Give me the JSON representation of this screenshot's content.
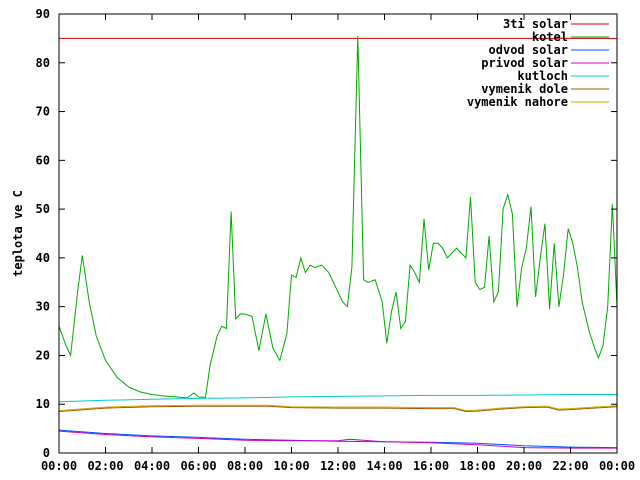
{
  "chart_data": {
    "type": "line",
    "title": "",
    "xlabel": "",
    "ylabel": "teplota ve C",
    "x_ticks": [
      "00:00",
      "02:00",
      "04:00",
      "06:00",
      "08:00",
      "10:00",
      "12:00",
      "14:00",
      "16:00",
      "18:00",
      "20:00",
      "22:00",
      "00:00"
    ],
    "xlim": [
      0,
      24
    ],
    "ylim": [
      0,
      90
    ],
    "y_ticks": [
      0,
      10,
      20,
      30,
      40,
      50,
      60,
      70,
      80,
      90
    ],
    "grid": false,
    "legend_position": "top-right",
    "series": [
      {
        "name": "3ti solar",
        "color": "#cc0000",
        "points": [
          [
            0,
            85
          ],
          [
            24,
            85
          ]
        ]
      },
      {
        "name": "kotel",
        "color": "#00aa00",
        "points": [
          [
            0,
            26
          ],
          [
            0.3,
            22
          ],
          [
            0.5,
            20
          ],
          [
            0.8,
            33
          ],
          [
            1,
            40.5
          ],
          [
            1.3,
            31
          ],
          [
            1.6,
            24
          ],
          [
            2,
            19
          ],
          [
            2.5,
            15.5
          ],
          [
            3,
            13.5
          ],
          [
            3.5,
            12.5
          ],
          [
            4,
            12
          ],
          [
            4.5,
            11.7
          ],
          [
            5,
            11.5
          ],
          [
            5.5,
            11.3
          ],
          [
            5.8,
            12.3
          ],
          [
            6,
            11.5
          ],
          [
            6.3,
            11.4
          ],
          [
            6.5,
            18
          ],
          [
            6.8,
            24
          ],
          [
            7,
            26
          ],
          [
            7.2,
            25.5
          ],
          [
            7.4,
            49.5
          ],
          [
            7.6,
            27.5
          ],
          [
            7.8,
            28.5
          ],
          [
            8,
            28.5
          ],
          [
            8.3,
            28
          ],
          [
            8.6,
            21
          ],
          [
            8.9,
            28.5
          ],
          [
            9.2,
            21.5
          ],
          [
            9.5,
            19
          ],
          [
            9.8,
            24.5
          ],
          [
            10,
            36.5
          ],
          [
            10.2,
            36
          ],
          [
            10.4,
            40
          ],
          [
            10.6,
            37
          ],
          [
            10.8,
            38.5
          ],
          [
            11,
            38
          ],
          [
            11.3,
            38.5
          ],
          [
            11.6,
            37
          ],
          [
            11.9,
            34
          ],
          [
            12.2,
            31
          ],
          [
            12.4,
            30
          ],
          [
            12.6,
            38
          ],
          [
            12.85,
            85.5
          ],
          [
            13.1,
            35.5
          ],
          [
            13.3,
            35
          ],
          [
            13.6,
            35.5
          ],
          [
            13.9,
            31
          ],
          [
            14.1,
            22.5
          ],
          [
            14.3,
            29
          ],
          [
            14.5,
            33
          ],
          [
            14.7,
            25.5
          ],
          [
            14.9,
            27
          ],
          [
            15.1,
            38.5
          ],
          [
            15.3,
            37
          ],
          [
            15.5,
            35
          ],
          [
            15.7,
            48
          ],
          [
            15.9,
            37.5
          ],
          [
            16.1,
            43
          ],
          [
            16.3,
            43
          ],
          [
            16.5,
            42
          ],
          [
            16.7,
            40
          ],
          [
            16.9,
            41
          ],
          [
            17.1,
            42
          ],
          [
            17.3,
            41
          ],
          [
            17.5,
            40
          ],
          [
            17.7,
            52.5
          ],
          [
            17.9,
            35
          ],
          [
            18.1,
            33.5
          ],
          [
            18.3,
            34
          ],
          [
            18.5,
            44.5
          ],
          [
            18.7,
            31
          ],
          [
            18.9,
            33
          ],
          [
            19.1,
            50
          ],
          [
            19.3,
            53
          ],
          [
            19.5,
            49
          ],
          [
            19.7,
            30
          ],
          [
            19.9,
            38
          ],
          [
            20.1,
            42
          ],
          [
            20.3,
            50.5
          ],
          [
            20.5,
            32
          ],
          [
            20.7,
            40
          ],
          [
            20.9,
            47
          ],
          [
            21.1,
            29.5
          ],
          [
            21.3,
            43
          ],
          [
            21.5,
            30
          ],
          [
            21.7,
            36.5
          ],
          [
            21.9,
            46
          ],
          [
            22.1,
            43
          ],
          [
            22.3,
            38
          ],
          [
            22.5,
            31
          ],
          [
            22.8,
            25
          ],
          [
            23,
            22
          ],
          [
            23.2,
            19.5
          ],
          [
            23.4,
            22
          ],
          [
            23.6,
            30
          ],
          [
            23.8,
            51
          ],
          [
            24,
            30
          ]
        ]
      },
      {
        "name": "odvod solar",
        "color": "#0055ff",
        "points": [
          [
            0,
            4.7
          ],
          [
            2,
            4
          ],
          [
            4,
            3.5
          ],
          [
            6,
            3.2
          ],
          [
            8,
            2.8
          ],
          [
            10,
            2.6
          ],
          [
            12,
            2.4
          ],
          [
            14,
            2.3
          ],
          [
            16,
            2.2
          ],
          [
            18,
            2
          ],
          [
            20,
            1.5
          ],
          [
            22,
            1.2
          ],
          [
            24,
            1.1
          ]
        ]
      },
      {
        "name": "privod solar",
        "color": "#cc00cc",
        "points": [
          [
            0,
            4.5
          ],
          [
            2,
            3.8
          ],
          [
            4,
            3.3
          ],
          [
            6,
            3
          ],
          [
            8,
            2.6
          ],
          [
            10,
            2.5
          ],
          [
            12,
            2.5
          ],
          [
            12.5,
            2.8
          ],
          [
            14,
            2.3
          ],
          [
            16,
            2.1
          ],
          [
            18,
            1.7
          ],
          [
            20,
            1.1
          ],
          [
            22,
            1
          ],
          [
            24,
            1
          ]
        ]
      },
      {
        "name": "kutloch",
        "color": "#00cccc",
        "points": [
          [
            0,
            10.5
          ],
          [
            2,
            10.8
          ],
          [
            4,
            11
          ],
          [
            6,
            11.2
          ],
          [
            8,
            11.3
          ],
          [
            10,
            11.5
          ],
          [
            12,
            11.6
          ],
          [
            14,
            11.7
          ],
          [
            16,
            11.8
          ],
          [
            18,
            11.8
          ],
          [
            20,
            11.9
          ],
          [
            22,
            12
          ],
          [
            24,
            12
          ]
        ]
      },
      {
        "name": "vymenik dole",
        "color": "#aa5500",
        "points": [
          [
            0,
            8.5
          ],
          [
            2,
            9.2
          ],
          [
            4,
            9.5
          ],
          [
            6,
            9.6
          ],
          [
            8,
            9.6
          ],
          [
            9,
            9.6
          ],
          [
            10,
            9.3
          ],
          [
            12,
            9.2
          ],
          [
            14,
            9.2
          ],
          [
            16,
            9.1
          ],
          [
            17,
            9.1
          ],
          [
            17.5,
            8.5
          ],
          [
            18,
            8.6
          ],
          [
            19,
            9
          ],
          [
            20,
            9.3
          ],
          [
            21,
            9.4
          ],
          [
            21.5,
            8.8
          ],
          [
            22,
            8.9
          ],
          [
            23,
            9.2
          ],
          [
            24,
            9.5
          ]
        ]
      },
      {
        "name": "vymenik nahore",
        "color": "#ccaa00",
        "points": [
          [
            0,
            8.7
          ],
          [
            2,
            9.4
          ],
          [
            4,
            9.7
          ],
          [
            6,
            9.8
          ],
          [
            8,
            9.8
          ],
          [
            9,
            9.8
          ],
          [
            10,
            9.5
          ],
          [
            12,
            9.4
          ],
          [
            14,
            9.4
          ],
          [
            16,
            9.3
          ],
          [
            17,
            9.3
          ],
          [
            17.5,
            8.7
          ],
          [
            18,
            8.8
          ],
          [
            19,
            9.2
          ],
          [
            20,
            9.5
          ],
          [
            21,
            9.6
          ],
          [
            21.5,
            9
          ],
          [
            22,
            9.1
          ],
          [
            23,
            9.4
          ],
          [
            24,
            9.7
          ]
        ]
      }
    ]
  }
}
